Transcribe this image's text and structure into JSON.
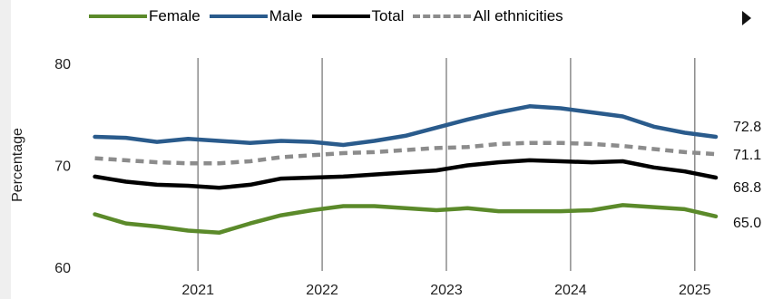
{
  "legend": {
    "items": [
      {
        "label": "Female",
        "color": "#5b8a2a",
        "style": "solid"
      },
      {
        "label": "Male",
        "color": "#2a5b8c",
        "style": "solid"
      },
      {
        "label": "Total",
        "color": "#000000",
        "style": "solid"
      },
      {
        "label": "All ethnicities",
        "color": "#8c8c8c",
        "style": "dashed"
      }
    ]
  },
  "controls": {
    "play_icon": "play-icon"
  },
  "chart_data": {
    "type": "line",
    "title": "",
    "xlabel": "",
    "ylabel": "Percentage",
    "xlim": [
      2020.1,
      2025.25
    ],
    "ylim": [
      60,
      80
    ],
    "yticks": [
      60,
      70,
      80
    ],
    "xticks": [
      "2021",
      "2022",
      "2023",
      "2024",
      "2025"
    ],
    "x": [
      2020.17,
      2020.42,
      2020.67,
      2020.92,
      2021.17,
      2021.42,
      2021.67,
      2021.92,
      2022.17,
      2022.42,
      2022.67,
      2022.92,
      2023.17,
      2023.42,
      2023.67,
      2023.92,
      2024.17,
      2024.42,
      2024.67,
      2024.92,
      2025.17
    ],
    "grid": {
      "vertical": true,
      "horizontal": false
    },
    "legend_position": "top",
    "series": [
      {
        "name": "Female",
        "color": "#5b8a2a",
        "dashed": false,
        "values": [
          65.2,
          64.3,
          64.0,
          63.6,
          63.4,
          64.3,
          65.1,
          65.6,
          66.0,
          66.0,
          65.8,
          65.6,
          65.8,
          65.5,
          65.5,
          65.5,
          65.6,
          66.1,
          65.9,
          65.7,
          65.0
        ],
        "end_label": "65.0"
      },
      {
        "name": "Male",
        "color": "#2a5b8c",
        "dashed": false,
        "values": [
          72.8,
          72.7,
          72.3,
          72.6,
          72.4,
          72.2,
          72.4,
          72.3,
          72.0,
          72.4,
          72.9,
          73.7,
          74.5,
          75.2,
          75.8,
          75.6,
          75.2,
          74.8,
          73.8,
          73.2,
          72.8
        ],
        "end_label": "72.8"
      },
      {
        "name": "Total",
        "color": "#000000",
        "dashed": false,
        "values": [
          68.9,
          68.4,
          68.1,
          68.0,
          67.8,
          68.1,
          68.7,
          68.8,
          68.9,
          69.1,
          69.3,
          69.5,
          70.0,
          70.3,
          70.5,
          70.4,
          70.3,
          70.4,
          69.8,
          69.4,
          68.8
        ],
        "end_label": "68.8"
      },
      {
        "name": "All ethnicities",
        "color": "#8c8c8c",
        "dashed": true,
        "values": [
          70.7,
          70.5,
          70.3,
          70.2,
          70.2,
          70.4,
          70.8,
          71.0,
          71.2,
          71.3,
          71.5,
          71.7,
          71.8,
          72.1,
          72.2,
          72.2,
          72.1,
          71.9,
          71.6,
          71.3,
          71.1
        ],
        "end_label": "71.1"
      }
    ]
  }
}
